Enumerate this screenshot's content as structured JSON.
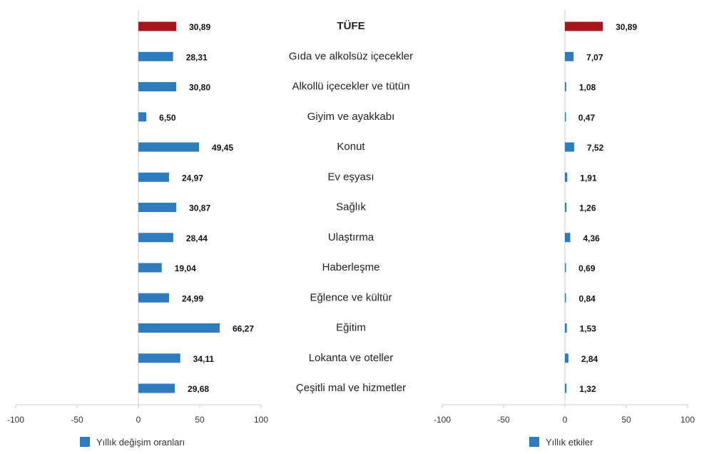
{
  "chart_data": [
    {
      "type": "bar",
      "orientation": "horizontal",
      "categories": [
        "TÜFE",
        "Gıda ve alkolsüz içecekler",
        "Alkollü içecekler ve tütün",
        "Giyim ve ayakkabı",
        "Konut",
        "Ev eşyası",
        "Sağlık",
        "Ulaştırma",
        "Haberleşme",
        "Eğlence ve kültür",
        "Eğitim",
        "Lokanta ve oteller",
        "Çeşitli mal ve hizmetler"
      ],
      "series": [
        {
          "name": "Yıllık değişim oranları",
          "values": [
            30.89,
            28.31,
            30.8,
            6.5,
            49.45,
            24.97,
            30.87,
            28.44,
            19.04,
            24.99,
            66.27,
            34.11,
            29.68
          ],
          "labels": [
            "30,89",
            "28,31",
            "30,80",
            "6,50",
            "49,45",
            "24,97",
            "30,87",
            "28,44",
            "19,04",
            "24,99",
            "66,27",
            "34,11",
            "29,68"
          ]
        }
      ],
      "xlim": [
        -100,
        100
      ],
      "xticks": [
        "-100",
        "-50",
        "0",
        "50",
        "100"
      ],
      "legend": "bottom"
    },
    {
      "type": "bar",
      "orientation": "horizontal",
      "categories": [
        "TÜFE",
        "Gıda ve alkolsüz içecekler",
        "Alkollü içecekler ve tütün",
        "Giyim ve ayakkabı",
        "Konut",
        "Ev eşyası",
        "Sağlık",
        "Ulaştırma",
        "Haberleşme",
        "Eğlence ve kültür",
        "Eğitim",
        "Lokanta ve oteller",
        "Çeşitli mal ve hizmetler"
      ],
      "series": [
        {
          "name": "Yıllık etkiler",
          "values": [
            30.89,
            7.07,
            1.08,
            0.47,
            7.52,
            1.91,
            1.26,
            4.36,
            0.69,
            0.84,
            1.53,
            2.84,
            1.32
          ],
          "labels": [
            "30,89",
            "7,07",
            "1,08",
            "0,47",
            "7,52",
            "1,91",
            "1,26",
            "4,36",
            "0,69",
            "0,84",
            "1,53",
            "2,84",
            "1,32"
          ]
        }
      ],
      "xlim": [
        -100,
        100
      ],
      "xticks": [
        "-100",
        "-50",
        "0",
        "50",
        "100"
      ],
      "legend": "bottom"
    }
  ],
  "colors": {
    "highlight": "#a6161c",
    "bar": "#2e7bbd",
    "axis": "#cccccc"
  }
}
